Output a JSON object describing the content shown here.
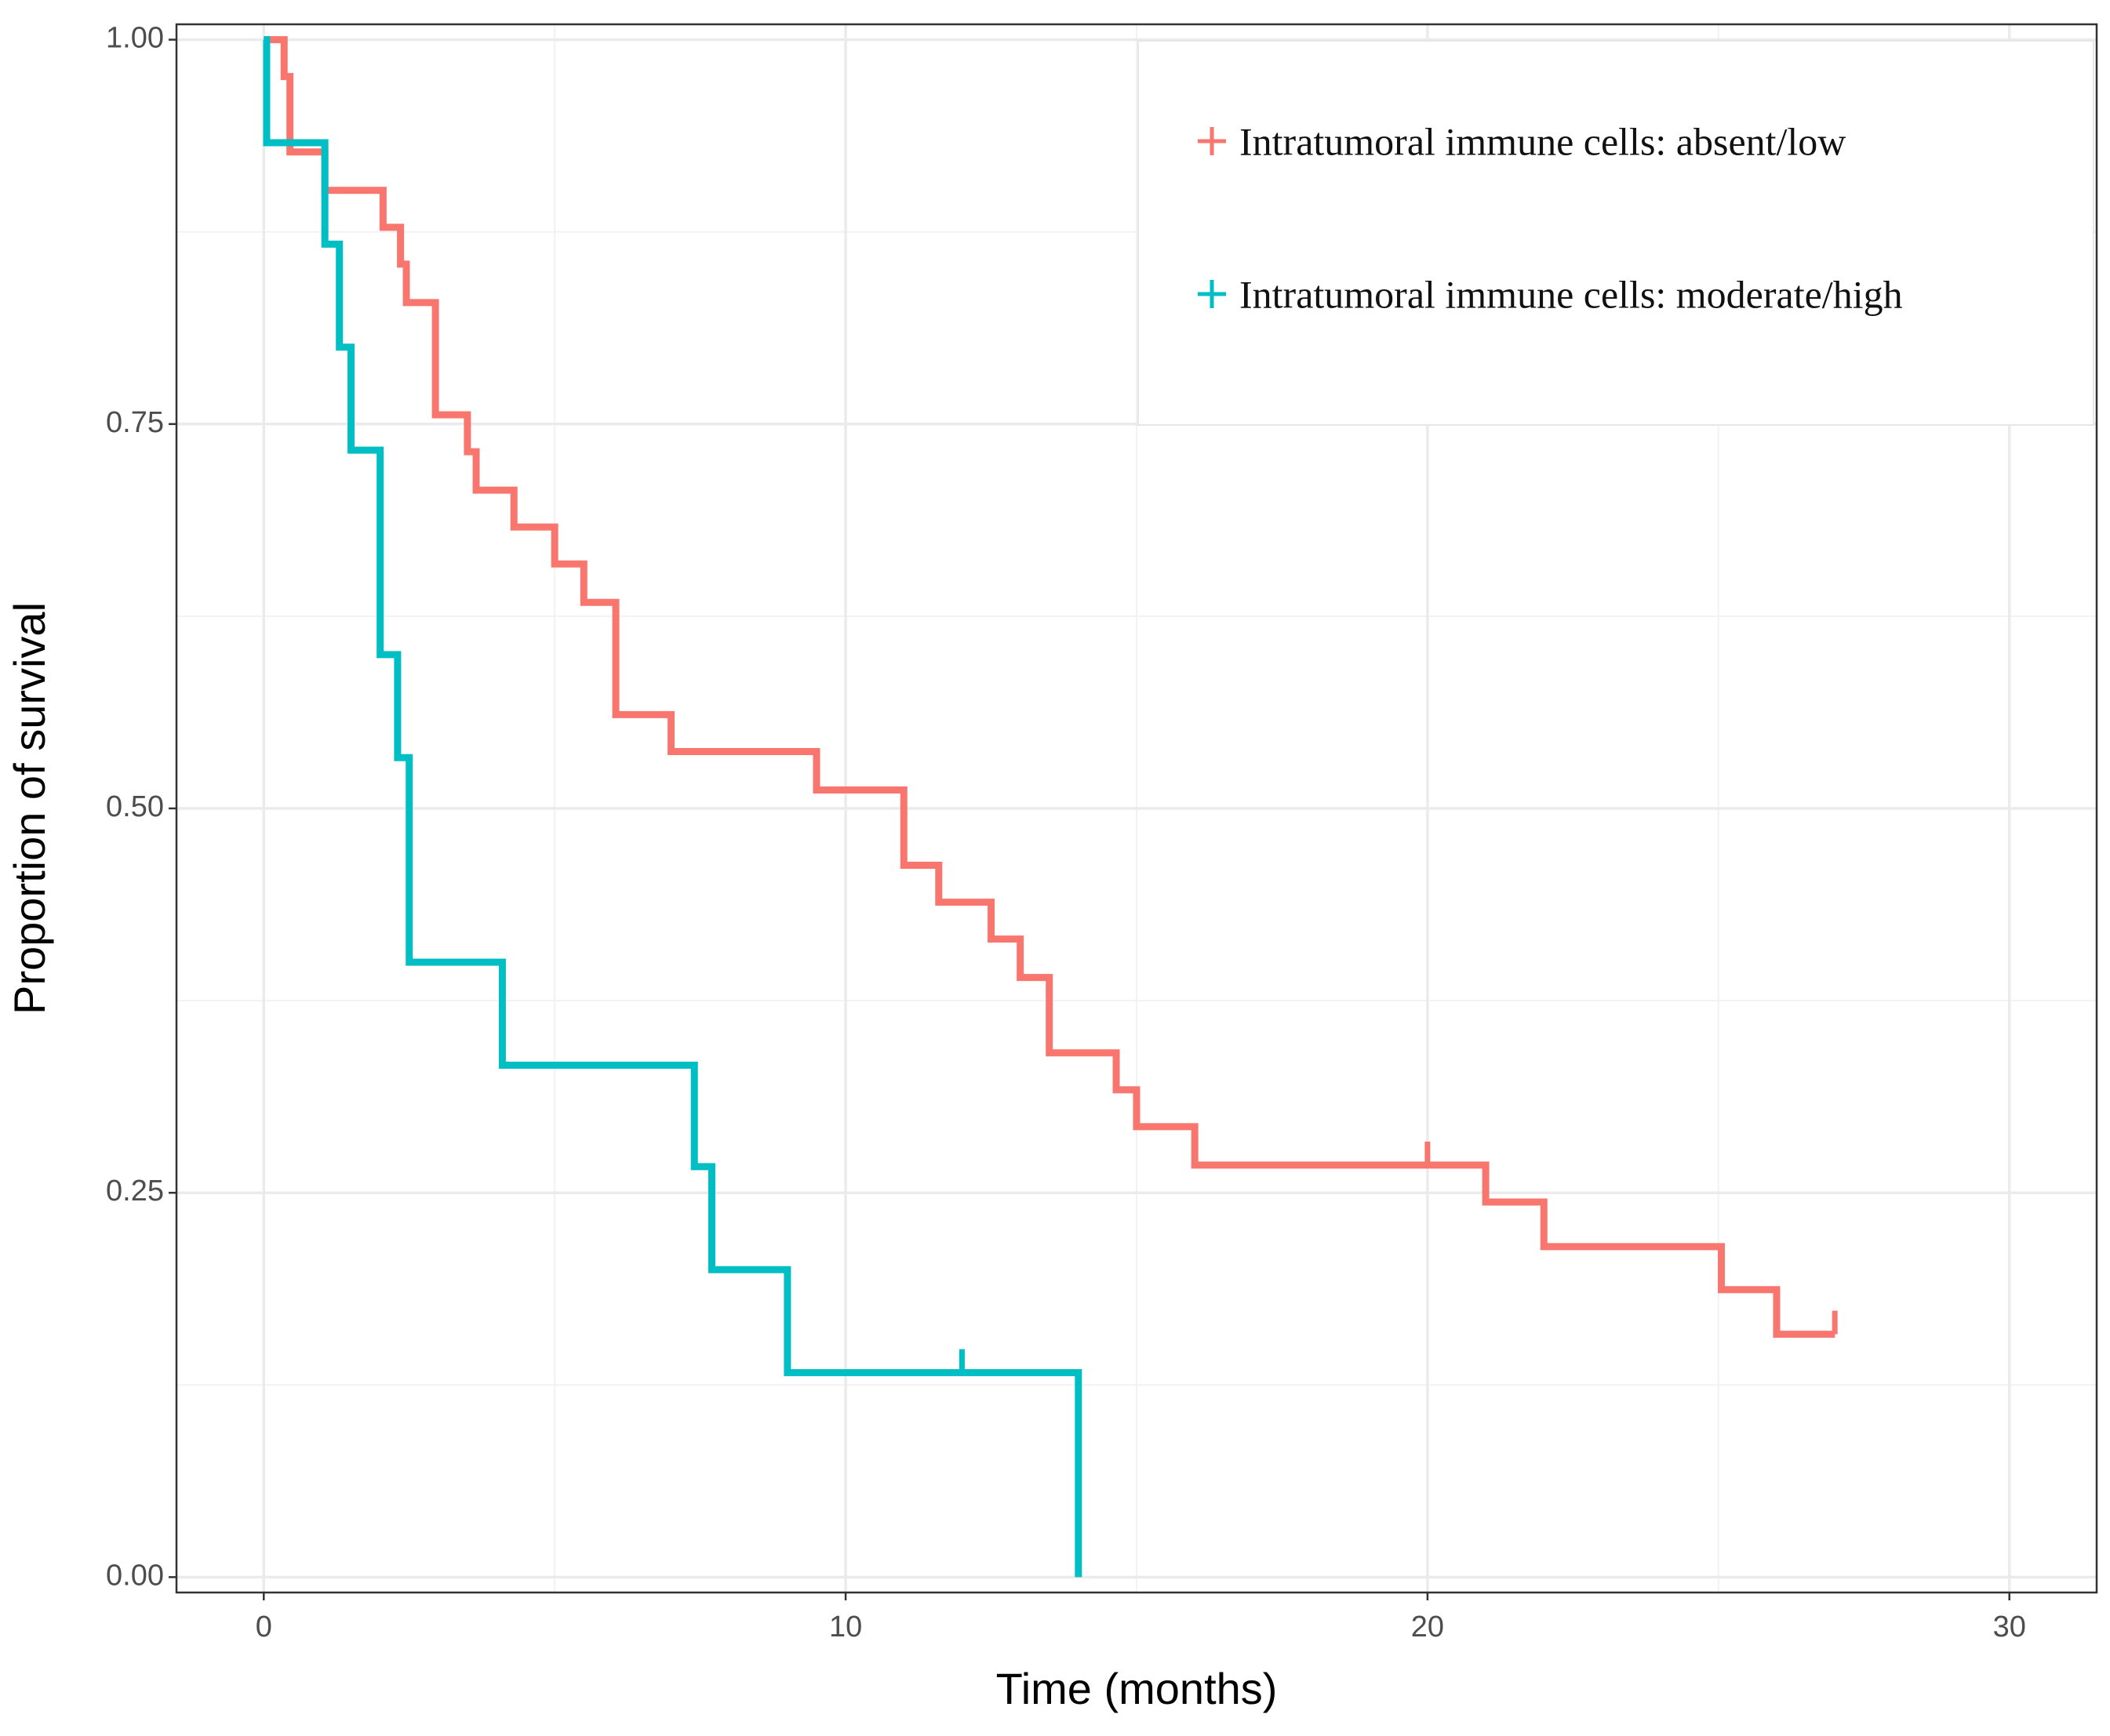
{
  "chart_data": {
    "type": "step",
    "x_label": "Time (months)",
    "y_label": "Proportion of survival",
    "xlim": [
      -1.5,
      31.5
    ],
    "ylim": [
      -0.01,
      1.01
    ],
    "xticks": [
      0,
      10,
      20,
      30
    ],
    "yticks": [
      {
        "value": 0,
        "label": "0.00"
      },
      0.25,
      {
        "value": 0.5,
        "label": "0.50"
      },
      0.75,
      {
        "value": 1,
        "label": "1.00"
      }
    ],
    "grid": true,
    "legend": "top-right",
    "series": [
      {
        "name": "Intratumoral immune cells: absent/low",
        "color": "#f8766d",
        "x": [
          0,
          0.35,
          0.45,
          1.05,
          2.05,
          2.35,
          2.45,
          2.95,
          3.5,
          3.65,
          4.3,
          5.0,
          5.5,
          6.05,
          7.0,
          9.5,
          11.0,
          11.6,
          12.5,
          13.0,
          13.5,
          14.65,
          15.0,
          16.0,
          21.0,
          22.0,
          25.05,
          26.0,
          27.0
        ],
        "values": [
          1,
          0.976,
          0.927,
          0.902,
          0.878,
          0.854,
          0.829,
          0.756,
          0.732,
          0.707,
          0.683,
          0.659,
          0.634,
          0.561,
          0.537,
          0.512,
          0.463,
          0.439,
          0.415,
          0.39,
          0.341,
          0.317,
          0.293,
          0.268,
          0.244,
          0.215,
          0.187,
          0.158,
          0.158
        ],
        "censored": {
          "x": [
            20,
            27
          ],
          "values": [
            0.268,
            0.158
          ]
        }
      },
      {
        "name": "Intratumoral immune cells: moderate/high",
        "color": "#00bfc4",
        "x": [
          0,
          0.05,
          1.05,
          1.3,
          1.5,
          2.0,
          2.3,
          2.5,
          4.1,
          7.4,
          7.7,
          9.0,
          14.0
        ],
        "values": [
          1,
          0.933,
          0.867,
          0.8,
          0.733,
          0.6,
          0.533,
          0.4,
          0.333,
          0.267,
          0.2,
          0.133,
          0
        ],
        "censored": {
          "x": [
            12
          ],
          "values": [
            0.133
          ]
        }
      }
    ]
  }
}
